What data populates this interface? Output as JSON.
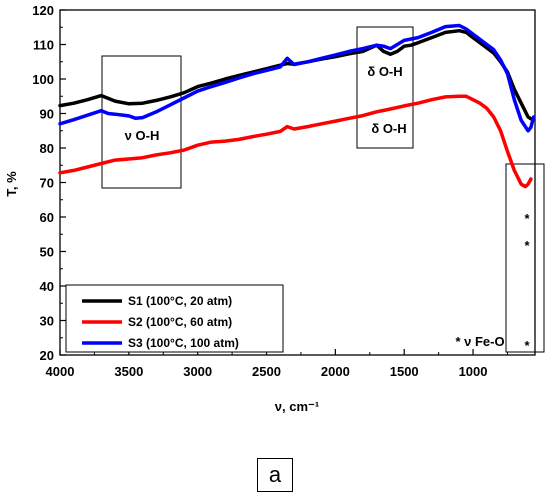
{
  "chart_data": {
    "type": "line",
    "xlabel": "ν, cm⁻¹",
    "ylabel": "T, %",
    "xlim": [
      4000,
      550
    ],
    "ylim": [
      20,
      120
    ],
    "x_ticks": [
      4000,
      3500,
      3000,
      2500,
      2000,
      1500,
      1000
    ],
    "x_tick_labels": [
      "4000",
      "3500",
      "3000",
      "2500",
      "2000",
      "1500",
      "1000"
    ],
    "y_ticks": [
      20,
      30,
      40,
      50,
      60,
      70,
      80,
      90,
      100,
      110,
      120
    ],
    "y_tick_labels": [
      "20",
      "30",
      "40",
      "50",
      "60",
      "70",
      "80",
      "90",
      "100",
      "110",
      "120"
    ],
    "grid": false,
    "legend_position": "bottom-left",
    "series": [
      {
        "name": "S1 (100°C, 20 atm)",
        "color": "#000000",
        "points": [
          [
            4000,
            92.3
          ],
          [
            3900,
            93
          ],
          [
            3800,
            94
          ],
          [
            3700,
            95.2
          ],
          [
            3600,
            93.6
          ],
          [
            3500,
            92.8
          ],
          [
            3400,
            93.0
          ],
          [
            3300,
            93.8
          ],
          [
            3200,
            94.8
          ],
          [
            3100,
            96.0
          ],
          [
            3000,
            97.8
          ],
          [
            2900,
            98.8
          ],
          [
            2800,
            100.0
          ],
          [
            2700,
            101.0
          ],
          [
            2600,
            102.0
          ],
          [
            2500,
            103.0
          ],
          [
            2400,
            104.0
          ],
          [
            2350,
            104.5
          ],
          [
            2300,
            104.3
          ],
          [
            2200,
            105.0
          ],
          [
            2100,
            105.8
          ],
          [
            2000,
            106.5
          ],
          [
            1900,
            107.3
          ],
          [
            1800,
            108.0
          ],
          [
            1700,
            109.8
          ],
          [
            1650,
            108.0
          ],
          [
            1600,
            107.2
          ],
          [
            1550,
            108.0
          ],
          [
            1500,
            109.5
          ],
          [
            1450,
            109.8
          ],
          [
            1400,
            110.5
          ],
          [
            1300,
            112.0
          ],
          [
            1200,
            113.5
          ],
          [
            1100,
            114.0
          ],
          [
            1050,
            113.5
          ],
          [
            1000,
            112.0
          ],
          [
            900,
            109.0
          ],
          [
            850,
            107.5
          ],
          [
            800,
            105.0
          ],
          [
            750,
            102.0
          ],
          [
            700,
            97.0
          ],
          [
            650,
            93.0
          ],
          [
            600,
            89.0
          ],
          [
            580,
            88.5
          ]
        ]
      },
      {
        "name": "S2 (100°C, 60 atm)",
        "color": "#ff0000",
        "points": [
          [
            4000,
            72.8
          ],
          [
            3900,
            73.5
          ],
          [
            3800,
            74.5
          ],
          [
            3700,
            75.5
          ],
          [
            3600,
            76.5
          ],
          [
            3500,
            76.8
          ],
          [
            3400,
            77.2
          ],
          [
            3300,
            78.0
          ],
          [
            3200,
            78.6
          ],
          [
            3100,
            79.4
          ],
          [
            3000,
            80.8
          ],
          [
            2900,
            81.7
          ],
          [
            2800,
            82.0
          ],
          [
            2700,
            82.5
          ],
          [
            2600,
            83.3
          ],
          [
            2500,
            84.0
          ],
          [
            2400,
            84.8
          ],
          [
            2350,
            86.2
          ],
          [
            2300,
            85.5
          ],
          [
            2200,
            86.2
          ],
          [
            2100,
            87.0
          ],
          [
            2000,
            87.8
          ],
          [
            1900,
            88.6
          ],
          [
            1800,
            89.4
          ],
          [
            1700,
            90.5
          ],
          [
            1600,
            91.3
          ],
          [
            1500,
            92.2
          ],
          [
            1400,
            93.0
          ],
          [
            1300,
            94.0
          ],
          [
            1200,
            94.8
          ],
          [
            1100,
            95.0
          ],
          [
            1050,
            95.0
          ],
          [
            1000,
            94.0
          ],
          [
            950,
            93.0
          ],
          [
            900,
            91.5
          ],
          [
            850,
            89.0
          ],
          [
            800,
            85.0
          ],
          [
            750,
            79.0
          ],
          [
            700,
            73.5
          ],
          [
            650,
            69.5
          ],
          [
            620,
            68.8
          ],
          [
            600,
            69.5
          ],
          [
            580,
            71.0
          ]
        ]
      },
      {
        "name": "S3 (100°C, 100 atm)",
        "color": "#0000ff",
        "points": [
          [
            4000,
            87.0
          ],
          [
            3900,
            88.2
          ],
          [
            3800,
            89.5
          ],
          [
            3700,
            90.8
          ],
          [
            3650,
            90.0
          ],
          [
            3600,
            89.8
          ],
          [
            3500,
            89.3
          ],
          [
            3450,
            88.6
          ],
          [
            3400,
            88.8
          ],
          [
            3300,
            90.5
          ],
          [
            3200,
            92.5
          ],
          [
            3100,
            94.5
          ],
          [
            3000,
            96.5
          ],
          [
            2900,
            97.8
          ],
          [
            2800,
            99.0
          ],
          [
            2700,
            100.3
          ],
          [
            2600,
            101.5
          ],
          [
            2500,
            102.5
          ],
          [
            2400,
            103.5
          ],
          [
            2350,
            106.0
          ],
          [
            2300,
            104.2
          ],
          [
            2200,
            105.0
          ],
          [
            2100,
            106.0
          ],
          [
            2000,
            107.0
          ],
          [
            1900,
            108.0
          ],
          [
            1800,
            108.8
          ],
          [
            1700,
            109.8
          ],
          [
            1650,
            109.5
          ],
          [
            1600,
            108.8
          ],
          [
            1550,
            110.0
          ],
          [
            1500,
            111.2
          ],
          [
            1400,
            112.0
          ],
          [
            1300,
            113.5
          ],
          [
            1200,
            115.2
          ],
          [
            1100,
            115.5
          ],
          [
            1050,
            114.5
          ],
          [
            1000,
            113.0
          ],
          [
            900,
            110.0
          ],
          [
            850,
            108.5
          ],
          [
            800,
            105.5
          ],
          [
            750,
            101.5
          ],
          [
            700,
            94.0
          ],
          [
            650,
            88.0
          ],
          [
            600,
            85.0
          ],
          [
            580,
            86.0
          ],
          [
            560,
            89.0
          ]
        ]
      }
    ],
    "annotations": [
      {
        "text": "ν O-H"
      },
      {
        "text": "δ O-H"
      },
      {
        "text": "δ O-H"
      },
      {
        "text": "* ν Fe-O"
      },
      {
        "text": "*"
      },
      {
        "text": "*"
      },
      {
        "text": "*"
      }
    ]
  },
  "panel_label": "a"
}
